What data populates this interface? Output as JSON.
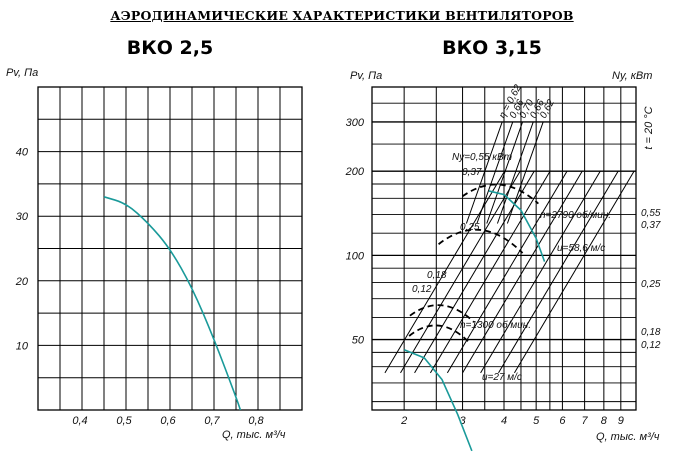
{
  "page_title": "АЭРОДИНАМИЧЕСКИЕ ХАРАКТЕРИСТИКИ ВЕНТИЛЯТОРОВ",
  "colors": {
    "curve": "#1a9a9a",
    "grid": "#000000"
  },
  "chart_data": [
    {
      "type": "line",
      "title": "ВКО 2,5",
      "ylabel": "Pv, Па",
      "xlabel": "Q, тыс. м³/ч",
      "xlim": [
        0.3,
        0.9
      ],
      "ylim": [
        0,
        50
      ],
      "x_ticks": [
        0.4,
        0.5,
        0.6,
        0.7,
        0.8
      ],
      "x_tick_labels": [
        "0,4",
        "0,5",
        "0,6",
        "0,7",
        "0,8"
      ],
      "y_ticks": [
        10,
        20,
        30,
        40
      ],
      "y_tick_labels": [
        "10",
        "20",
        "30",
        "40"
      ],
      "grid": true,
      "series": [
        {
          "x": [
            0.45,
            0.5,
            0.55,
            0.6,
            0.65,
            0.7,
            0.75,
            0.76
          ],
          "y": [
            33,
            32,
            29,
            25,
            19,
            11,
            2,
            0
          ]
        }
      ]
    },
    {
      "type": "line",
      "title": "ВКО 3,15",
      "ylabel": "Pv, Па",
      "xlabel": "Q, тыс. м³/ч",
      "y2label": "Ny, кВт",
      "side_note": "t = 20 °C",
      "x_scale": "log",
      "y_scale": "log",
      "xlim": [
        1.6,
        10
      ],
      "ylim": [
        28,
        400
      ],
      "x_ticks": [
        2,
        3,
        4,
        5,
        6,
        7,
        8,
        9
      ],
      "x_tick_labels": [
        "2",
        "3",
        "4",
        "5",
        "6",
        "7",
        "8",
        "9"
      ],
      "y_ticks": [
        50,
        100,
        200,
        300
      ],
      "y_tick_labels": [
        "50",
        "100",
        "200",
        "300"
      ],
      "grid": true,
      "power_axis_labels": [
        "0,55",
        "0,37",
        "0,25",
        "0,18",
        "0,12"
      ],
      "eta_labels": [
        "η = 0,62",
        "0,66",
        "0,70",
        "0,66",
        "0,62"
      ],
      "annotations": [
        "Ny=0,55 кВт",
        "0,37",
        "0,25",
        "0,18",
        "0,12",
        "n=2790 об/мин.",
        "n=1300 об/мин.",
        "u=58,6 м/с",
        "u=27 м/с"
      ],
      "series": [
        {
          "name": "n=2790 об/мин.",
          "x": [
            3.6,
            4.0,
            4.5,
            5.0,
            5.3
          ],
          "y": [
            170,
            165,
            145,
            115,
            95
          ]
        },
        {
          "name": "n=1300 об/мин.",
          "x": [
            2.0,
            2.3,
            2.6,
            2.9,
            3.2
          ],
          "y": [
            46,
            43,
            36,
            27,
            20
          ]
        }
      ]
    }
  ]
}
